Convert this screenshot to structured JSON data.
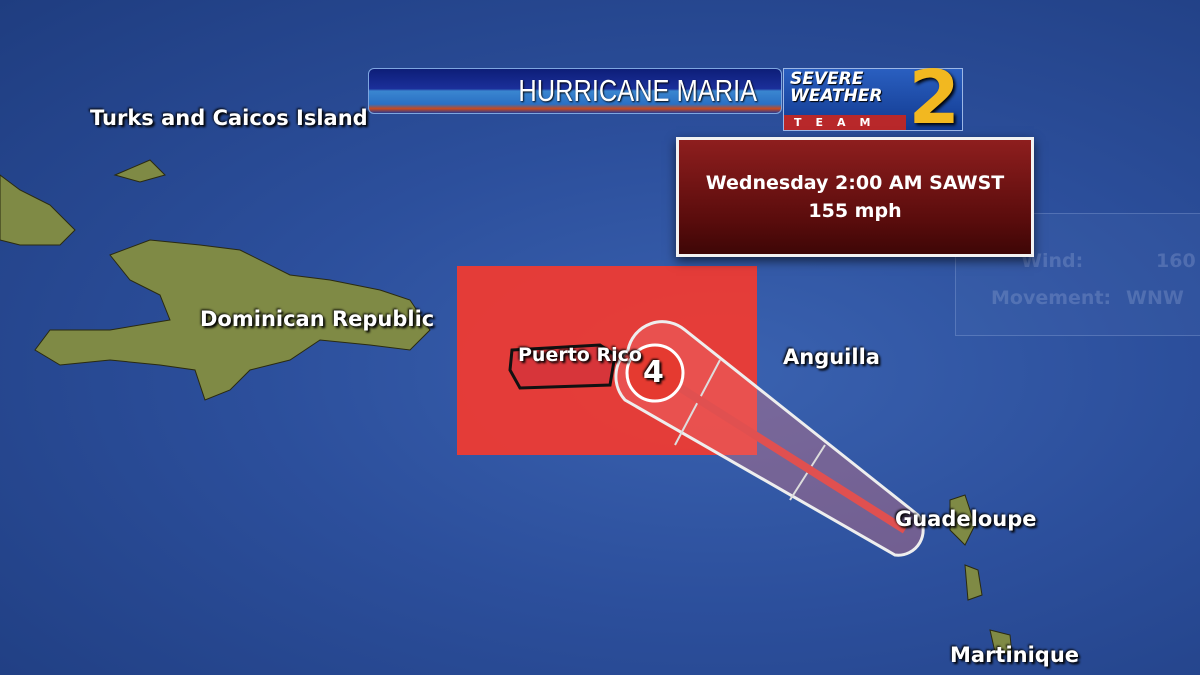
{
  "header": {
    "title": "HURRICANE MARIA"
  },
  "logo": {
    "line1": "SEVERE",
    "line2": "WEATHER",
    "team": "TEAM",
    "number": "2"
  },
  "info": {
    "time": "Wednesday 2:00 AM SAWST",
    "wind": "155 mph"
  },
  "ghost_panel": {
    "wind_label": "Wind:",
    "wind_value": "160",
    "movement_label": "Movement:",
    "movement_value": "WNW"
  },
  "hurricane": {
    "category": "4",
    "color": "#e53a30"
  },
  "labels": {
    "turks": "Turks and Caicos Island",
    "dr": "Dominican Republic",
    "pr": "Puerto Rico",
    "anguilla": "Anguilla",
    "guadeloupe": "Guadeloupe",
    "martinique": "Martinique"
  },
  "colors": {
    "ocean": "#2c4f9c",
    "warning": "#ee3b33",
    "land": "#7f8a45"
  }
}
